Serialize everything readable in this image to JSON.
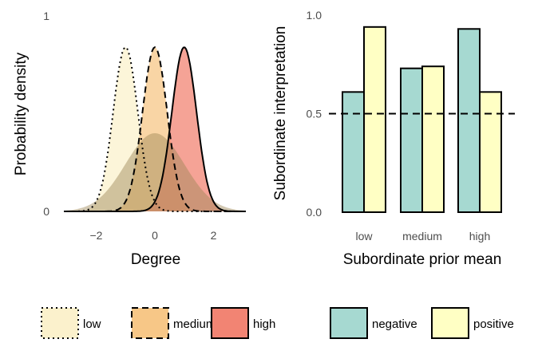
{
  "chart_data": [
    {
      "type": "area",
      "xlabel": "Degree",
      "ylabel": "Probability density",
      "xlim": [
        -3.1,
        3.1
      ],
      "ylim": [
        0,
        1
      ],
      "x_ticks": [
        "−2",
        "0",
        "2"
      ],
      "x_tick_values": [
        -2,
        0,
        2
      ],
      "y_ticks": [
        "0",
        "1"
      ],
      "y_tick_values": [
        0,
        1
      ],
      "grid": false,
      "series": [
        {
          "name": "low",
          "kind": "prior",
          "mean": -1.0,
          "sd": 0.42,
          "peak": 0.84,
          "color": "#FBF1CC",
          "line": "dotted"
        },
        {
          "name": "medium",
          "kind": "prior",
          "mean": 0.0,
          "sd": 0.42,
          "peak": 0.84,
          "color": "#F7C787",
          "line": "dashed"
        },
        {
          "name": "high",
          "kind": "prior",
          "mean": 1.0,
          "sd": 0.42,
          "peak": 0.84,
          "color": "#F28473",
          "line": "solid"
        },
        {
          "name": "reference",
          "kind": "reference",
          "mean": 0.0,
          "sd": 1.0,
          "peak": 0.4,
          "color": "#9C8555"
        }
      ]
    },
    {
      "type": "bar",
      "xlabel": "Subordinate prior mean",
      "ylabel": "Subordinate interpretation",
      "categories": [
        "low",
        "medium",
        "high"
      ],
      "ylim": [
        0,
        1
      ],
      "y_ticks": [
        "0.0",
        "0.5",
        "1.0"
      ],
      "y_tick_values": [
        0,
        0.5,
        1
      ],
      "reference_line": 0.5,
      "grid": false,
      "series": [
        {
          "name": "negative",
          "values": [
            0.61,
            0.73,
            0.93
          ],
          "color": "#A6D9D1"
        },
        {
          "name": "positive",
          "values": [
            0.94,
            0.74,
            0.61
          ],
          "color": "#FFFFC4"
        }
      ]
    }
  ],
  "legends": {
    "prior": [
      {
        "label": "low",
        "color": "#FBF1CC",
        "line": "dotted"
      },
      {
        "label": "medium",
        "color": "#F7C787",
        "line": "dashed"
      },
      {
        "label": "high",
        "color": "#F28473",
        "line": "solid"
      }
    ],
    "polarity": [
      {
        "label": "negative",
        "color": "#A6D9D1"
      },
      {
        "label": "positive",
        "color": "#FFFFC4"
      }
    ]
  }
}
